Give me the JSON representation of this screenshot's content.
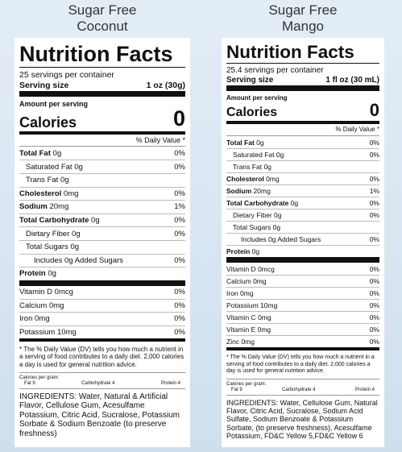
{
  "labels": [
    {
      "heading": [
        "Sugar Free",
        "Coconut"
      ],
      "title": "Nutrition Facts",
      "servings": "25 servings per container",
      "serving_size_label": "Serving size",
      "serving_size": "1 oz (30g)",
      "amount_per_serving": "Amount per serving",
      "calories_label": "Calories",
      "calories": "0",
      "dv_header": "% Daily Value *",
      "nutrients": [
        {
          "name": "Total Fat",
          "amount": "0g",
          "dv": "0%",
          "bold": true,
          "indent": 0
        },
        {
          "name": "Saturated Fat",
          "amount": "0g",
          "dv": "0%",
          "bold": false,
          "indent": 1
        },
        {
          "name": "Trans Fat",
          "amount": "0g",
          "bold": false,
          "indent": 1
        },
        {
          "name": "Cholesterol",
          "amount": "0mg",
          "dv": "0%",
          "bold": true,
          "indent": 0
        },
        {
          "name": "Sodium",
          "amount": "20mg",
          "dv": "1%",
          "bold": true,
          "indent": 0
        },
        {
          "name": "Total Carbohydrate",
          "amount": "0g",
          "dv": "0%",
          "bold": true,
          "indent": 0
        },
        {
          "name": "Dietary Fiber",
          "amount": "0g",
          "dv": "0%",
          "bold": false,
          "indent": 1
        },
        {
          "name": "Total Sugars",
          "amount": "0g",
          "bold": false,
          "indent": 1
        },
        {
          "name": "Includes 0g Added Sugars",
          "dv": "0%",
          "bold": false,
          "indent": 2
        },
        {
          "name": "Protein",
          "amount": "0g",
          "bold": true,
          "indent": 0
        }
      ],
      "vitamins": [
        {
          "name": "Vitamin D",
          "amount": "0mcg",
          "dv": "0%"
        },
        {
          "name": "Calcium",
          "amount": "0mg",
          "dv": "0%"
        },
        {
          "name": "Iron",
          "amount": "0mg",
          "dv": "0%"
        },
        {
          "name": "Potassium",
          "amount": "10mg",
          "dv": "0%"
        }
      ],
      "footnote": "* The % Daily Value (DV) tells you how much a nutrient in a serving of food contributes to a daily diet. 2,000 calories a day is used for general nutrition advice.",
      "calories_per_gram": {
        "label": "Calories per gram:",
        "fat": "Fat 9",
        "carbohydrate": "Carbohydrate 4",
        "protein": "Protein 4"
      },
      "ingredients": "INGREDIENTS: Water, Natural & Artificial Flavor, Cellulose Gum, Acesulfame Potassium, Citric Acid, Sucralose, Potassium Sorbate & Sodium Benzoate (to preserve freshness)"
    },
    {
      "heading": [
        "Sugar Free",
        "Mango"
      ],
      "title": "Nutrition Facts",
      "servings": "25.4 servings per container",
      "serving_size_label": "Serving size",
      "serving_size": "1 fl oz (30 mL)",
      "amount_per_serving": "Amount per serving",
      "calories_label": "Calories",
      "calories": "0",
      "dv_header": "% Daily Value *",
      "nutrients": [
        {
          "name": "Total Fat",
          "amount": "0g",
          "dv": "0%",
          "bold": true,
          "indent": 0
        },
        {
          "name": "Saturated Fat",
          "amount": "0g",
          "dv": "0%",
          "bold": false,
          "indent": 1
        },
        {
          "name": "Trans Fat",
          "amount": "0g",
          "bold": false,
          "indent": 1
        },
        {
          "name": "Cholesterol",
          "amount": "0mg",
          "dv": "0%",
          "bold": true,
          "indent": 0
        },
        {
          "name": "Sodium",
          "amount": "20mg",
          "dv": "1%",
          "bold": true,
          "indent": 0
        },
        {
          "name": "Total Carbohydrate",
          "amount": "0g",
          "dv": "0%",
          "bold": true,
          "indent": 0
        },
        {
          "name": "Dietary Fiber",
          "amount": "0g",
          "dv": "0%",
          "bold": false,
          "indent": 1
        },
        {
          "name": "Total Sugars",
          "amount": "0g",
          "bold": false,
          "indent": 1
        },
        {
          "name": "Includes 0g Added Sugars",
          "dv": "0%",
          "bold": false,
          "indent": 2
        },
        {
          "name": "Protein",
          "amount": "0g",
          "bold": true,
          "indent": 0
        }
      ],
      "vitamins": [
        {
          "name": "Vitamin D",
          "amount": "0mcg",
          "dv": "0%"
        },
        {
          "name": "Calcium",
          "amount": "0mg",
          "dv": "0%"
        },
        {
          "name": "Iron",
          "amount": "0mg",
          "dv": "0%"
        },
        {
          "name": "Potassium",
          "amount": "10mg",
          "dv": "0%"
        },
        {
          "name": "Vitamin C",
          "amount": "0mg",
          "dv": "0%"
        },
        {
          "name": "Vitamin E",
          "amount": "0mg",
          "dv": "0%"
        },
        {
          "name": "Zinc",
          "amount": "0mg",
          "dv": "0%"
        }
      ],
      "footnote": "* The % Daily Value (DV) tells you how much a nutrient in a serving of food contributes to a daily diet. 2,000 calories a day is used for general nutrition advice.",
      "calories_per_gram": {
        "label": "Calories per gram:",
        "fat": "Fat 9",
        "carbohydrate": "Carbohydrate 4",
        "protein": "Protein 4"
      },
      "ingredients": "INGREDIENTS: Water, Cellulose Gum, Natural Flavor, Citric Acid, Sucralose, Sodium Acid Sulfate, Sodium Benzoate & Potassium Sorbate, (to preserve freshness), Acesulfame Potassium, FD&C Yellow 5,FD&C Yellow 6"
    }
  ]
}
